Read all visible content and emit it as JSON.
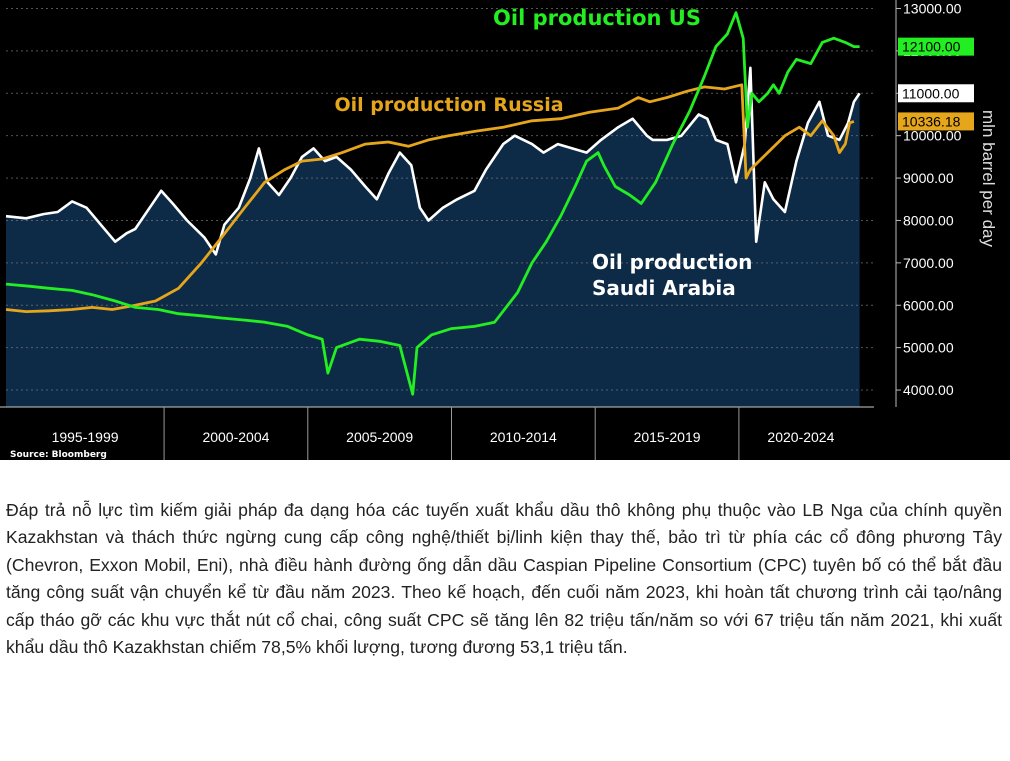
{
  "chart_data": {
    "type": "line",
    "ylabel": "mln barrel per day",
    "source": "Source: Bloomberg",
    "ylim": [
      3600,
      13200
    ],
    "yticks": [
      {
        "value": 4000,
        "label": "4000.00"
      },
      {
        "value": 5000,
        "label": "5000.00"
      },
      {
        "value": 6000,
        "label": "6000.00"
      },
      {
        "value": 7000,
        "label": "7000.00"
      },
      {
        "value": 8000,
        "label": "8000.00"
      },
      {
        "value": 9000,
        "label": "9000.00"
      },
      {
        "value": 10000,
        "label": "10000.00"
      },
      {
        "value": 11000,
        "label": "11000.00"
      },
      {
        "value": 12000,
        "label": "12000.00"
      },
      {
        "value": 13000,
        "label": "13000.00"
      }
    ],
    "xlim": [
      1994.5,
      2024.7
    ],
    "x_periods": [
      {
        "label": "1995-1999",
        "start": 1994.5,
        "end": 2000
      },
      {
        "label": "2000-2004",
        "start": 2000,
        "end": 2005
      },
      {
        "label": "2005-2009",
        "start": 2005,
        "end": 2010
      },
      {
        "label": "2010-2014",
        "start": 2010,
        "end": 2015
      },
      {
        "label": "2015-2019",
        "start": 2015,
        "end": 2020
      },
      {
        "label": "2020-2024",
        "start": 2020,
        "end": 2024.7
      }
    ],
    "series": [
      {
        "name": "Oil production Saudi Arabia",
        "style": "area-line",
        "color": "#ffffff",
        "fill": "#0d2a47",
        "last_value_label": "11000.00",
        "x": [
          1994.5,
          1995.2,
          1995.8,
          1996.3,
          1996.8,
          1997.3,
          1997.8,
          1998.3,
          1998.7,
          1999.0,
          1999.5,
          1999.9,
          2000.3,
          2000.8,
          2001.4,
          2001.8,
          2002.1,
          2002.6,
          2003.0,
          2003.3,
          2003.6,
          2004.0,
          2004.4,
          2004.8,
          2005.2,
          2005.6,
          2006.0,
          2006.5,
          2007.0,
          2007.4,
          2007.8,
          2008.2,
          2008.6,
          2008.9,
          2009.2,
          2009.7,
          2010.2,
          2010.8,
          2011.2,
          2011.8,
          2012.2,
          2012.8,
          2013.2,
          2013.7,
          2014.2,
          2014.7,
          2015.2,
          2015.8,
          2016.3,
          2016.8,
          2017.0,
          2017.5,
          2018.0,
          2018.6,
          2018.9,
          2019.2,
          2019.6,
          2019.9,
          2020.2,
          2020.4,
          2020.6,
          2020.9,
          2021.2,
          2021.6,
          2022.0,
          2022.4,
          2022.8,
          2023.1,
          2023.5,
          2023.8,
          2024.0,
          2024.2
        ],
        "values": [
          8100,
          8050,
          8150,
          8200,
          8450,
          8300,
          7900,
          7500,
          7700,
          7800,
          8300,
          8700,
          8400,
          8000,
          7600,
          7200,
          7900,
          8300,
          9000,
          9700,
          8900,
          8600,
          9000,
          9500,
          9700,
          9400,
          9500,
          9200,
          8800,
          8500,
          9100,
          9600,
          9300,
          8300,
          8000,
          8300,
          8500,
          8700,
          9200,
          9800,
          10000,
          9800,
          9600,
          9800,
          9700,
          9600,
          9900,
          10200,
          10400,
          10000,
          9900,
          9900,
          10000,
          10500,
          10400,
          9900,
          9800,
          8900,
          9800,
          11600,
          7500,
          8900,
          8500,
          8200,
          9400,
          10300,
          10800,
          10000,
          9900,
          10300,
          10800,
          11000
        ]
      },
      {
        "name": "Oil production Russia",
        "style": "line",
        "color": "#e6a61c",
        "last_value_label": "10336.18",
        "x": [
          1994.5,
          1995.2,
          1996.0,
          1996.8,
          1997.5,
          1998.2,
          1999.0,
          1999.7,
          2000.5,
          2001.3,
          2002.0,
          2002.8,
          2003.5,
          2004.2,
          2004.8,
          2005.5,
          2006.2,
          2007.0,
          2007.8,
          2008.5,
          2009.2,
          2009.9,
          2010.8,
          2011.8,
          2012.8,
          2013.8,
          2014.8,
          2015.8,
          2016.5,
          2016.9,
          2017.5,
          2018.2,
          2018.8,
          2019.5,
          2020.1,
          2020.25,
          2020.4,
          2021.0,
          2021.6,
          2022.1,
          2022.5,
          2022.9,
          2023.3,
          2023.5,
          2023.7,
          2023.85,
          2024.0
        ],
        "values": [
          5900,
          5850,
          5870,
          5900,
          5950,
          5900,
          6000,
          6100,
          6400,
          7000,
          7600,
          8300,
          8900,
          9200,
          9400,
          9450,
          9600,
          9800,
          9850,
          9750,
          9900,
          10000,
          10100,
          10200,
          10350,
          10400,
          10550,
          10650,
          10900,
          10800,
          10900,
          11050,
          11150,
          11100,
          11200,
          9000,
          9200,
          9600,
          10000,
          10200,
          10000,
          10350,
          10000,
          9600,
          9800,
          10300,
          10336
        ]
      },
      {
        "name": "Oil production US",
        "style": "line",
        "color": "#22ee22",
        "last_value_label": "12100.00",
        "x": [
          1994.5,
          1995.3,
          1996.0,
          1996.8,
          1997.5,
          1998.3,
          1999.0,
          1999.8,
          2000.5,
          2001.3,
          2002.0,
          2002.8,
          2003.5,
          2004.3,
          2005.0,
          2005.5,
          2005.7,
          2006.0,
          2006.8,
          2007.5,
          2008.2,
          2008.65,
          2008.8,
          2009.3,
          2010.0,
          2010.8,
          2011.5,
          2012.3,
          2012.8,
          2013.3,
          2013.8,
          2014.3,
          2014.7,
          2015.1,
          2015.3,
          2015.7,
          2016.2,
          2016.6,
          2017.1,
          2017.7,
          2018.3,
          2018.8,
          2019.2,
          2019.6,
          2019.9,
          2020.15,
          2020.3,
          2020.45,
          2020.7,
          2021.0,
          2021.2,
          2021.4,
          2021.7,
          2022.0,
          2022.5,
          2022.9,
          2023.3,
          2023.7,
          2024.0,
          2024.2
        ],
        "values": [
          6500,
          6450,
          6400,
          6350,
          6250,
          6100,
          5950,
          5900,
          5800,
          5750,
          5700,
          5650,
          5600,
          5500,
          5300,
          5200,
          4400,
          5000,
          5200,
          5150,
          5050,
          3900,
          5000,
          5300,
          5450,
          5500,
          5600,
          6300,
          7000,
          7500,
          8100,
          8800,
          9400,
          9600,
          9300,
          8800,
          8600,
          8400,
          8900,
          9800,
          10600,
          11400,
          12100,
          12400,
          12900,
          12300,
          10200,
          11000,
          10800,
          11000,
          11200,
          11000,
          11500,
          11800,
          11700,
          12200,
          12300,
          12200,
          12100,
          12100
        ]
      }
    ],
    "annotations": [
      {
        "text": "Oil production US",
        "color": "#22ee22"
      },
      {
        "text": "Oil production Russia",
        "color": "#e6a61c"
      },
      {
        "text": "Oil production Saudi Arabia",
        "color": "#ffffff"
      }
    ]
  },
  "article": {
    "paragraph": "Đáp trả nỗ lực tìm kiếm giải pháp đa dạng hóa các tuyến xuất khẩu dầu thô không phụ thuộc vào LB Nga của chính quyền Kazakhstan và thách thức ngừng cung cấp công nghệ/thiết bị/linh kiện thay thế, bảo trì từ phía các cổ đông phương Tây (Chevron, Exxon Mobil, Eni), nhà điều hành đường ống dẫn dầu Caspian Pipeline Consortium (CPC) tuyên bố có thể bắt đầu tăng công suất vận chuyển kể từ đầu năm 2023. Theo kế hoạch, đến cuối năm 2023, khi hoàn tất chương trình cải tạo/nâng cấp tháo gỡ các khu vực thắt nút cổ chai, công suất CPC sẽ tăng lên 82 triệu tấn/năm so với 67 triệu tấn năm 2021, khi xuất khẩu dầu thô Kazakhstan chiếm 78,5% khối lượng, tương đương 53,1 triệu tấn."
  }
}
